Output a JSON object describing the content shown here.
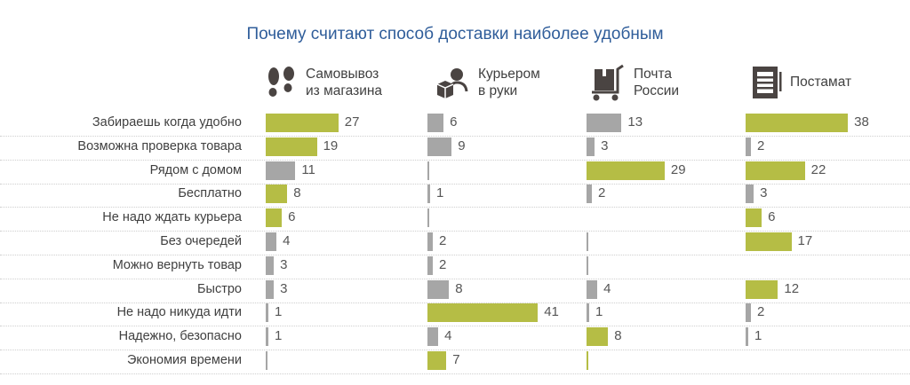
{
  "chart_data": {
    "type": "bar",
    "title": "Почему считают способ доставки наиболее удобным",
    "categories": [
      "Забираешь когда удобно",
      "Возможна проверка товара",
      "Рядом с домом",
      "Бесплатно",
      "Не надо ждать курьера",
      "Без очередей",
      "Можно вернуть товар",
      "Быстро",
      "Не надо никуда идти",
      "Надежно, безопасно",
      "Экономия времени"
    ],
    "series": [
      {
        "name": "Самовывоз из магазина",
        "name_lines": [
          "Самовывоз",
          "из магазина"
        ],
        "icon": "footprints-icon",
        "values": [
          27,
          19,
          11,
          8,
          6,
          4,
          3,
          3,
          1,
          1,
          0
        ],
        "highlight": [
          true,
          true,
          false,
          true,
          true,
          false,
          false,
          false,
          false,
          false,
          false
        ]
      },
      {
        "name": "Курьером в руки",
        "name_lines": [
          "Курьером",
          "в руки"
        ],
        "icon": "courier-icon",
        "values": [
          6,
          9,
          0,
          1,
          0,
          2,
          2,
          8,
          41,
          4,
          7
        ],
        "highlight": [
          false,
          false,
          false,
          false,
          false,
          false,
          false,
          false,
          true,
          false,
          true
        ]
      },
      {
        "name": "Почта России",
        "name_lines": [
          "Почта",
          "России"
        ],
        "icon": "postal-cart-icon",
        "values": [
          13,
          3,
          29,
          2,
          null,
          0,
          0,
          4,
          1,
          8,
          0
        ],
        "highlight": [
          false,
          false,
          true,
          false,
          false,
          false,
          false,
          false,
          false,
          true,
          true
        ]
      },
      {
        "name": "Постамат",
        "name_lines": [
          "Постамат"
        ],
        "icon": "parcel-locker-icon",
        "values": [
          38,
          2,
          22,
          3,
          6,
          17,
          null,
          12,
          2,
          1,
          null
        ],
        "highlight": [
          true,
          false,
          true,
          false,
          true,
          true,
          false,
          true,
          false,
          false,
          false
        ]
      }
    ],
    "xlim": [
      0,
      45
    ],
    "grid": false,
    "legend": "top",
    "colors": {
      "highlight": "#b5bd45",
      "normal": "#a6a6a6"
    }
  }
}
